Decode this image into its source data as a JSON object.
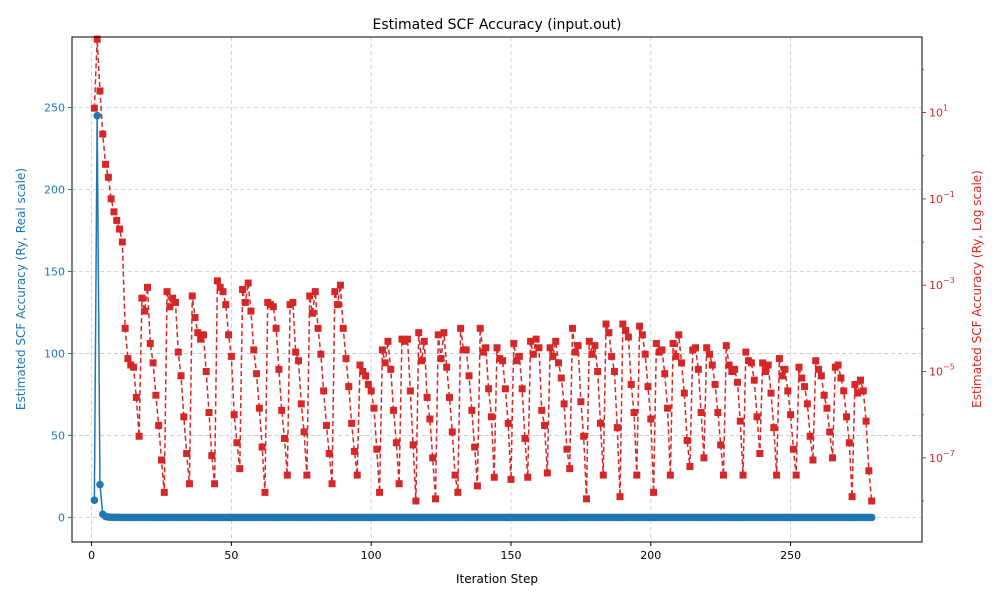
{
  "chart_data": {
    "type": "line",
    "title": "Estimated SCF Accuracy (input.out)",
    "xlabel": "Iteration Step",
    "ylabel_left": "Estimated SCF Accuracy (Ry, Real scale)",
    "ylabel_right": "Estimated SCF Accuracy (Ry, Log scale)",
    "xlim": [
      -7,
      297
    ],
    "ylim_left": [
      -15,
      293
    ],
    "ylim_right_log10": [
      -8.95,
      2.75
    ],
    "x_ticks": [
      0,
      50,
      100,
      150,
      200,
      250
    ],
    "y_left_ticks": [
      0,
      50,
      100,
      150,
      200,
      250
    ],
    "y_right_ticks": [
      {
        "exp": 1,
        "label": "10",
        "sup": "1"
      },
      {
        "exp": -1,
        "label": "10",
        "sup": "−1"
      },
      {
        "exp": -3,
        "label": "10",
        "sup": "−3"
      },
      {
        "exp": -5,
        "label": "10",
        "sup": "−5"
      },
      {
        "exp": -7,
        "label": "10",
        "sup": "−7"
      }
    ],
    "grid": true,
    "left_color": "#1f77b4",
    "right_color": "#d62728",
    "series": [
      {
        "axis": "left",
        "scale": "linear",
        "x_start": 1,
        "values": [
          10.5,
          245.0,
          20.0,
          2.0,
          0.6,
          0.2,
          0.1,
          0.05,
          0.03,
          0.02,
          0.01
        ]
      },
      {
        "axis": "right",
        "scale": "log",
        "x_start": 1,
        "log10_values": [
          1.1,
          2.7,
          1.5,
          0.5,
          -0.2,
          -0.5,
          -1.0,
          -1.3,
          -1.5,
          -1.7,
          -2.0,
          -4.0,
          -4.7,
          -4.85,
          -4.9,
          -5.6,
          -6.5,
          -3.3,
          -3.6,
          -3.05,
          -4.35,
          -4.8,
          -5.55,
          -6.25,
          -7.05,
          -7.8,
          -3.15,
          -3.5,
          -3.3,
          -3.4,
          -4.55,
          -5.1,
          -6.05,
          -6.9,
          -7.6,
          -3.25,
          -3.75,
          -4.1,
          -4.25,
          -4.15,
          -5.0,
          -5.95,
          -6.95,
          -7.6,
          -2.9,
          -3.05,
          -3.15,
          -3.45,
          -4.15,
          -4.65,
          -6.0,
          -6.65,
          -7.25,
          -3.1,
          -3.4,
          -2.95,
          -3.6,
          -4.5,
          -5.05,
          -5.85,
          -6.75,
          -7.8,
          -3.4,
          -3.45,
          -3.5,
          -4.0,
          -4.95,
          -5.9,
          -6.55,
          -7.4,
          -3.45,
          -3.4,
          -4.55,
          -4.75,
          -5.75,
          -6.4,
          -7.4,
          -3.25,
          -3.65,
          -3.15,
          -4.0,
          -4.6,
          -5.45,
          -6.25,
          -6.9,
          -7.6,
          -3.15,
          -3.45,
          -3.0,
          -4.0,
          -4.7,
          -5.35,
          -6.2,
          -6.85,
          -7.4,
          -4.85,
          -5.0,
          -5.1,
          -5.3,
          -5.45,
          -5.85,
          -6.8,
          -7.8,
          -4.5,
          -4.8,
          -4.3,
          -4.95,
          -5.9,
          -6.65,
          -7.6,
          -4.25,
          -4.3,
          -4.25,
          -5.45,
          -6.7,
          -8.0,
          -4.1,
          -4.75,
          -4.3,
          -5.6,
          -6.1,
          -7.0,
          -7.95,
          -4.15,
          -4.7,
          -4.1,
          -4.9,
          -5.6,
          -6.4,
          -7.4,
          -7.8,
          -4.0,
          -4.5,
          -4.5,
          -5.1,
          -5.9,
          -6.75,
          -7.65,
          -4.0,
          -4.55,
          -4.45,
          -5.4,
          -6.05,
          -7.45,
          -4.45,
          -4.7,
          -4.75,
          -5.4,
          -6.2,
          -7.5,
          -4.35,
          -4.75,
          -4.65,
          -5.4,
          -6.55,
          -7.45,
          -4.3,
          -4.6,
          -4.25,
          -4.45,
          -5.9,
          -6.25,
          -7.35,
          -4.45,
          -4.65,
          -4.3,
          -4.8,
          -5.15,
          -5.75,
          -6.8,
          -7.25,
          -4.0,
          -4.55,
          -4.4,
          -5.7,
          -6.5,
          -7.95,
          -4.3,
          -4.6,
          -4.4,
          -5.0,
          -6.2,
          -7.4,
          -3.9,
          -4.1,
          -4.65,
          -5.0,
          -6.3,
          -7.9,
          -3.9,
          -4.05,
          -4.2,
          -5.3,
          -5.95,
          -7.4,
          -3.95,
          -4.15,
          -4.6,
          -5.35,
          -6.1,
          -7.8,
          -4.35,
          -4.55,
          -4.5,
          -5.05,
          -5.85,
          -7.4,
          -4.35,
          -4.65,
          -4.15,
          -4.8,
          -5.5,
          -6.6,
          -7.2,
          -4.5,
          -4.45,
          -4.95,
          -5.95,
          -7.0,
          -4.45,
          -4.6,
          -4.85,
          -5.3,
          -5.95,
          -6.7,
          -7.4,
          -4.4,
          -4.85,
          -5.0,
          -4.95,
          -5.25,
          -6.15,
          -7.4,
          -4.55,
          -4.75,
          -4.8,
          -5.2,
          -6.05,
          -6.9,
          -4.8,
          -5.0,
          -4.85,
          -5.5,
          -6.3,
          -7.4,
          -4.7,
          -5.1,
          -4.95,
          -5.45,
          -6.0,
          -6.8,
          -7.4,
          -4.9,
          -5.15,
          -5.35,
          -5.75,
          -6.5,
          -7.05,
          -4.75,
          -4.95,
          -5.1,
          -5.55,
          -5.85,
          -6.4,
          -7.0,
          -4.9,
          -4.85,
          -5.15,
          -5.45,
          -6.05,
          -6.65,
          -7.9,
          -5.3,
          -5.5,
          -5.2,
          -5.45,
          -6.15,
          -7.3,
          -8.0
        ]
      }
    ]
  }
}
